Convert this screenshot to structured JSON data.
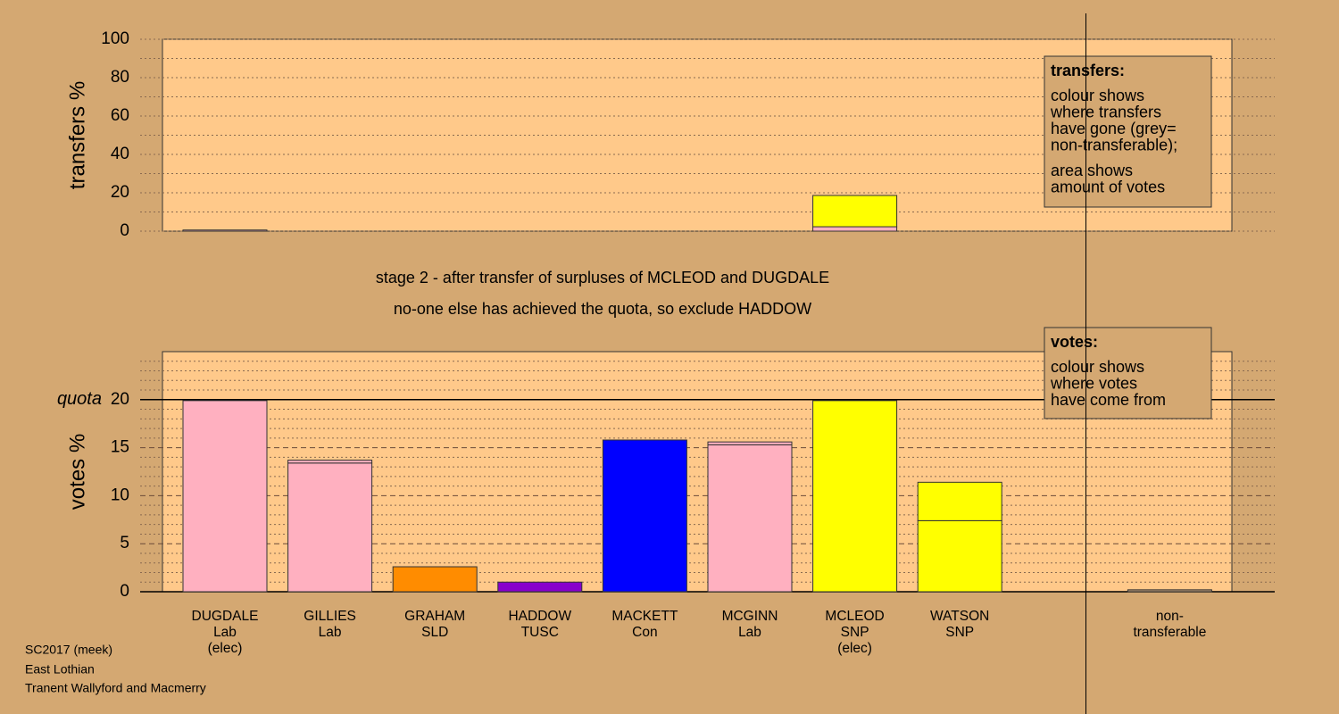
{
  "chart_data": [
    {
      "type": "bar",
      "stacked": true,
      "y_label": "transfers %",
      "ylim": [
        0,
        100
      ],
      "yticks": [
        0,
        20,
        40,
        60,
        80,
        100
      ],
      "minor_yticks": [
        10,
        30,
        50,
        70,
        90
      ],
      "series": [
        {
          "colors": [
            "#ffb0c0",
            null,
            null,
            null,
            null,
            null,
            "#ffb0c0",
            null,
            null,
            null
          ],
          "values": [
            0.6,
            null,
            null,
            null,
            null,
            null,
            2.3,
            null,
            null,
            null
          ]
        },
        {
          "colors": [
            null,
            null,
            null,
            null,
            null,
            null,
            "#ffff00",
            null,
            null,
            null
          ],
          "values": [
            null,
            null,
            null,
            null,
            null,
            null,
            16.3,
            null,
            null,
            null
          ]
        }
      ],
      "legend": {
        "title": "transfers:",
        "paragraphs": [
          [
            "colour shows",
            "where transfers",
            "have gone (grey=",
            "non-transferable);"
          ],
          [
            "area shows",
            "amount of votes"
          ]
        ]
      }
    },
    {
      "type": "bar",
      "stacked": true,
      "y_label": "votes %",
      "categories": [
        [
          "DUGDALE",
          "Lab",
          "(elec)"
        ],
        [
          "GILLIES",
          "Lab"
        ],
        [
          "GRAHAM",
          "SLD"
        ],
        [
          "HADDOW",
          "TUSC"
        ],
        [
          "MACKETT",
          "Con"
        ],
        [
          "MCGINN",
          "Lab"
        ],
        [
          "MCLEOD",
          "SNP",
          "(elec)"
        ],
        [
          "WATSON",
          "SNP"
        ],
        null,
        [
          "non-",
          "transferable"
        ]
      ],
      "ylim": [
        0,
        25
      ],
      "yticks": [
        0,
        5,
        10,
        15,
        20
      ],
      "minor_yticks": [
        1,
        2,
        3,
        4,
        6,
        7,
        8,
        9,
        11,
        12,
        13,
        14,
        16,
        17,
        18,
        19,
        21,
        22,
        23,
        24
      ],
      "quota": 20,
      "quota_label": "quota",
      "series": [
        {
          "colors": [
            "#ffb0c0",
            "#ffb0c0",
            "#ff8c00",
            "#8800cc",
            "#0000ff",
            "#ffb0c0",
            "#ffff00",
            "#ffff00",
            null,
            "#b09070"
          ],
          "values": [
            19.9,
            13.4,
            2.6,
            1.0,
            15.8,
            15.3,
            19.9,
            7.4,
            null,
            0.2
          ]
        },
        {
          "colors": [
            null,
            "#ffb0c0",
            null,
            null,
            null,
            "#ffb0c0",
            null,
            "#ffff00",
            null,
            null
          ],
          "values": [
            null,
            0.3,
            null,
            null,
            null,
            0.3,
            null,
            4.0,
            null,
            null
          ]
        }
      ],
      "legend": {
        "title": "votes:",
        "paragraphs": [
          [
            "colour shows",
            "where votes",
            "have come from"
          ]
        ]
      }
    }
  ],
  "stage_lines": [
    "stage 2 - after transfer of surpluses of MCLEOD and DUGDALE",
    "no-one else has achieved the quota, so exclude HADDOW"
  ],
  "footer": [
    "SC2017 (meek)",
    "East Lothian",
    "Tranent Wallyford and Macmerry"
  ]
}
